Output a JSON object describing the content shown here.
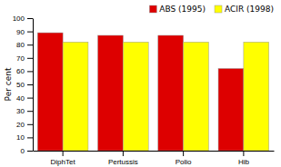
{
  "chart_data": {
    "type": "bar",
    "categories": [
      "DiphTet",
      "Pertussis",
      "Polio",
      "Hib"
    ],
    "series": [
      {
        "name": "ABS (1995)",
        "color": "#dd0000",
        "values": [
          89,
          87,
          87,
          62
        ]
      },
      {
        "name": "ACIR (1998)",
        "color": "#ffff00",
        "values": [
          82,
          82,
          82,
          82
        ]
      }
    ],
    "ylabel": "Per cent",
    "ylim": [
      0,
      100
    ],
    "yticks": [
      0,
      10,
      20,
      30,
      40,
      50,
      60,
      70,
      80,
      90,
      100
    ],
    "legend": "upper right",
    "grid": false
  }
}
